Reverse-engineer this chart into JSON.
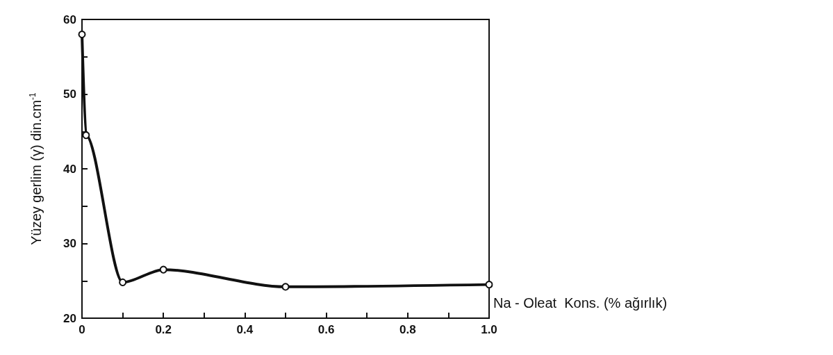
{
  "chart_data": {
    "type": "line",
    "xlabel": "Na - Oleat  Kons. (% ağırlık)",
    "ylabel": "Yüzey gerlim (γ) din.cm$^{-1}$",
    "x": [
      0,
      0.01,
      0.1,
      0.2,
      0.5,
      1.0
    ],
    "series": [
      {
        "color": "#111111",
        "values": [
          58,
          44.5,
          24.8,
          26.5,
          24.2,
          24.5
        ]
      }
    ],
    "xlim": [
      0,
      1.0
    ],
    "ylim": [
      20,
      60
    ],
    "xticks": [
      {
        "value": 0,
        "label": "0"
      },
      {
        "value": 0.1,
        "label": null
      },
      {
        "value": 0.2,
        "label": "0.2"
      },
      {
        "value": 0.3,
        "label": null
      },
      {
        "value": 0.4,
        "label": "0.4"
      },
      {
        "value": 0.5,
        "label": null
      },
      {
        "value": 0.6,
        "label": "0.6"
      },
      {
        "value": 0.7,
        "label": null
      },
      {
        "value": 0.8,
        "label": "0.8"
      },
      {
        "value": 0.9,
        "label": null
      },
      {
        "value": 1.0,
        "label": "1.0"
      }
    ],
    "yticks": [
      20,
      {
        "value": 25,
        "label": null
      },
      30,
      {
        "value": 35,
        "label": null
      },
      40,
      {
        "value": 45,
        "label": null
      },
      50,
      {
        "value": 55,
        "label": null
      },
      60
    ],
    "marker": "circle",
    "line_style": "solid",
    "grid": false
  }
}
